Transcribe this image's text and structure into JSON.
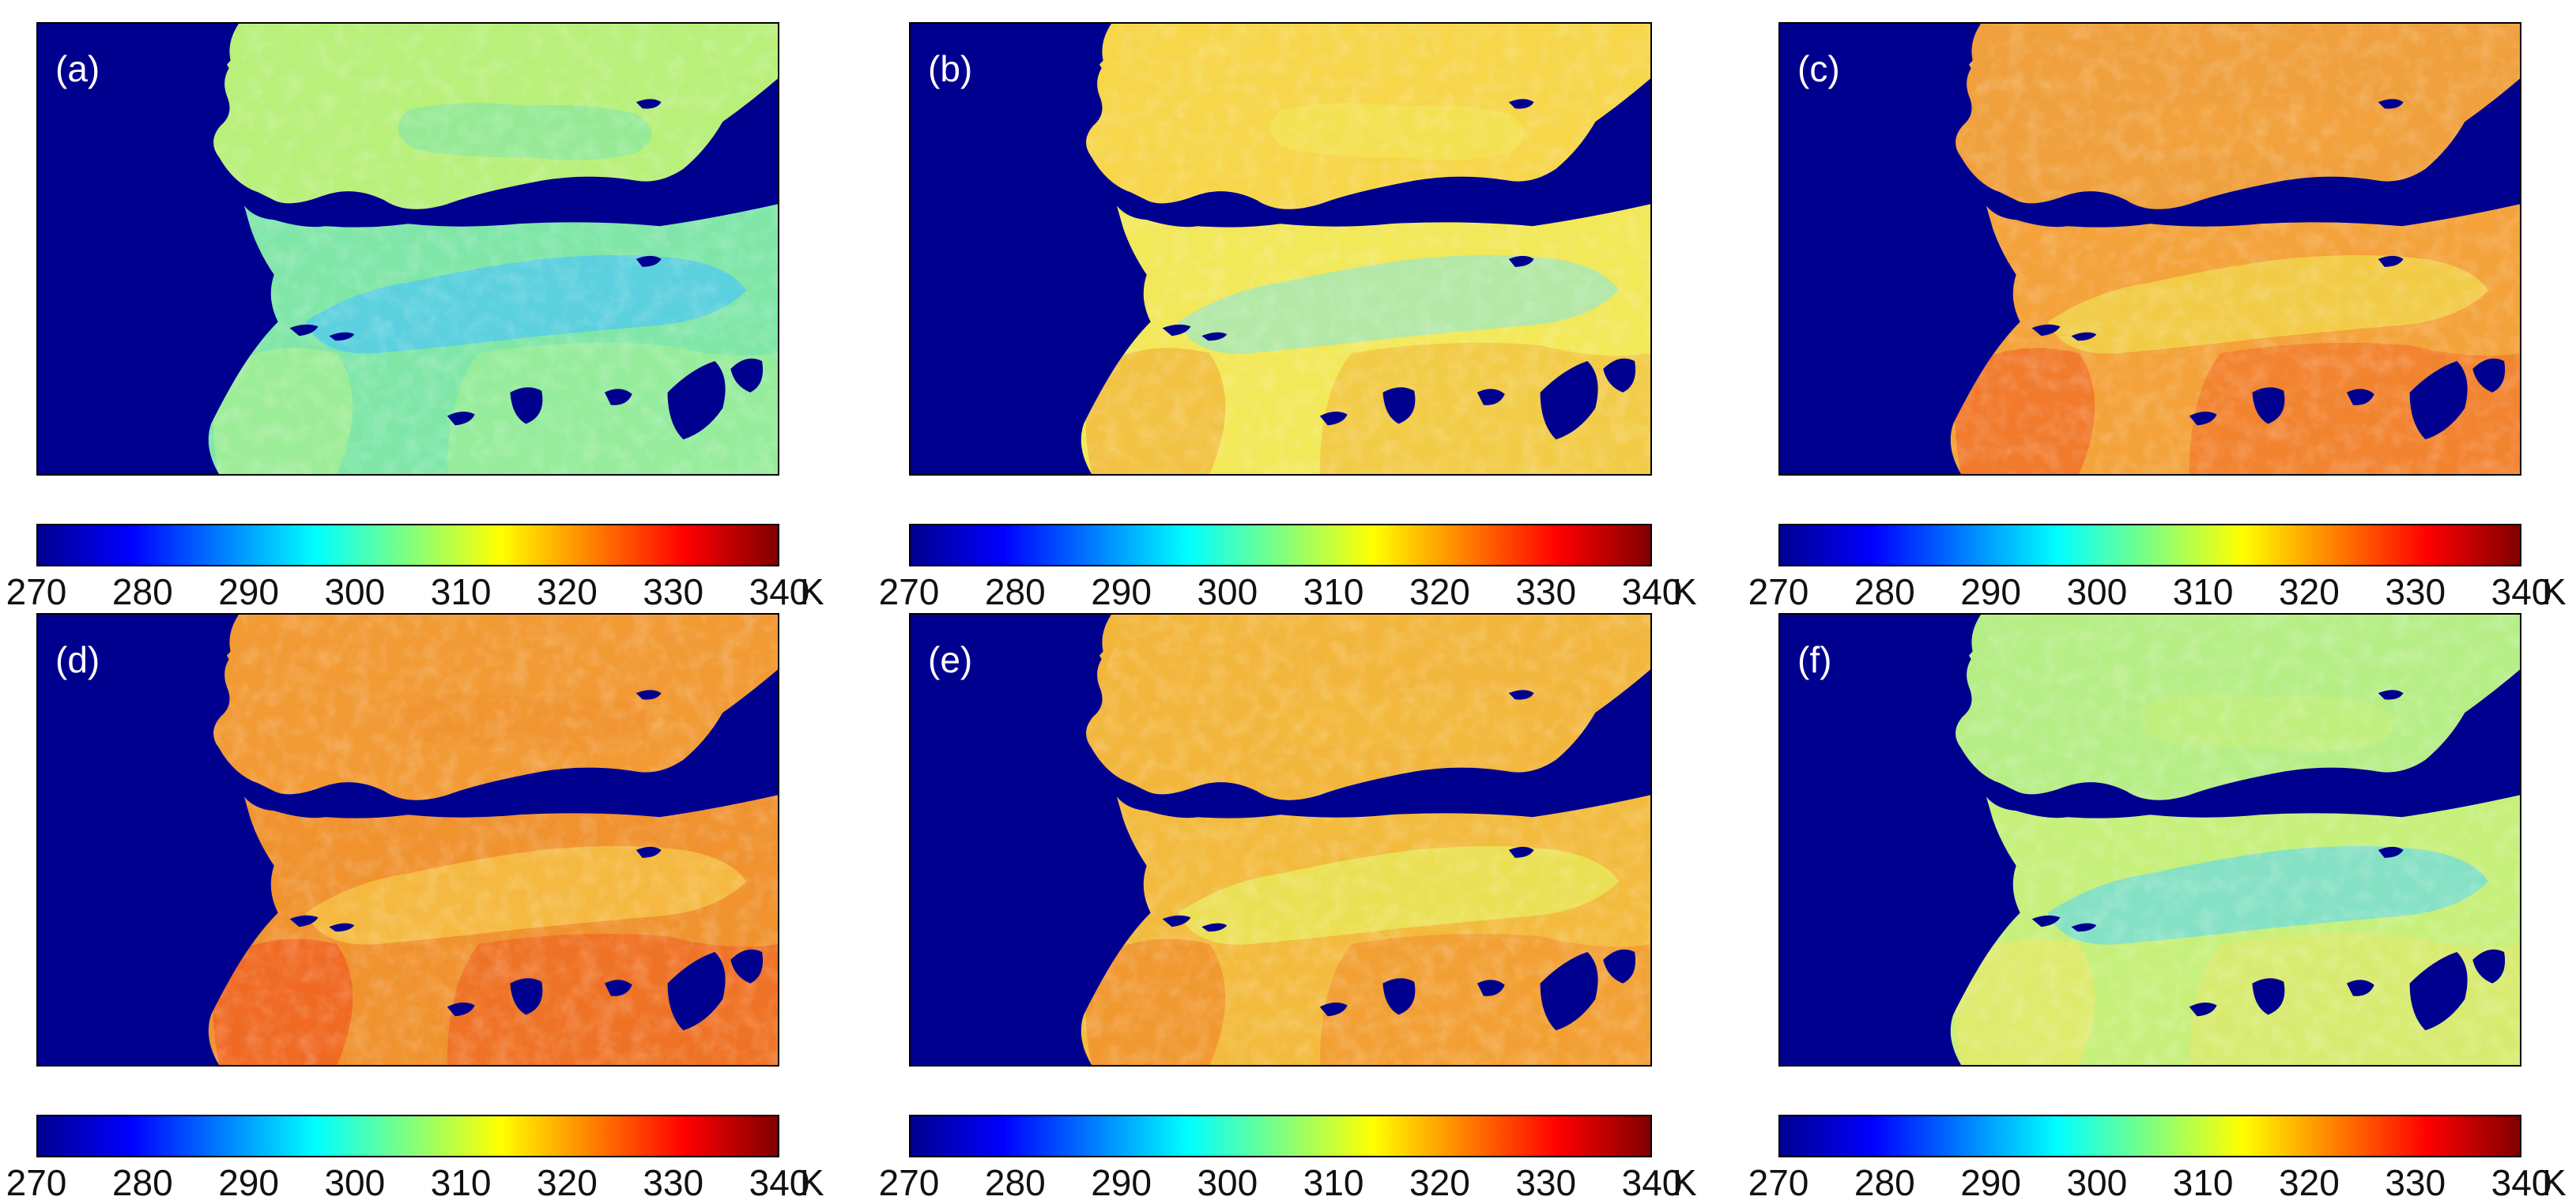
{
  "figure": {
    "colorbar": {
      "min": 270,
      "max": 340,
      "ticks": [
        "270",
        "280",
        "290",
        "300",
        "310",
        "320",
        "330",
        "340"
      ],
      "unit": "K",
      "colormap": [
        "#00008f",
        "#0000ff",
        "#00ffff",
        "#ffff00",
        "#ff0000",
        "#800000"
      ]
    },
    "ocean_color": "#00008f",
    "panels": [
      {
        "label": "(a)",
        "land_color": "#7fe6a8",
        "north_color": "#b8f07a",
        "south_color": "#a8f090",
        "cool_color": "#4fc8f0"
      },
      {
        "label": "(b)",
        "land_color": "#f2e858",
        "north_color": "#f7d64a",
        "south_color": "#f2b23a",
        "cool_color": "#9de8c0"
      },
      {
        "label": "(c)",
        "land_color": "#f4a23a",
        "north_color": "#f0a03c",
        "south_color": "#f06a26",
        "cool_color": "#f2d84c"
      },
      {
        "label": "(d)",
        "land_color": "#f0922e",
        "north_color": "#f29a34",
        "south_color": "#ef5a20",
        "cool_color": "#f7c648"
      },
      {
        "label": "(e)",
        "land_color": "#f3bb3e",
        "north_color": "#f3b63c",
        "south_color": "#f08a2c",
        "cool_color": "#e8ec5c"
      },
      {
        "label": "(f)",
        "land_color": "#c6f07a",
        "north_color": "#b6ee86",
        "south_color": "#e8e868",
        "cool_color": "#6fdcde"
      }
    ]
  }
}
